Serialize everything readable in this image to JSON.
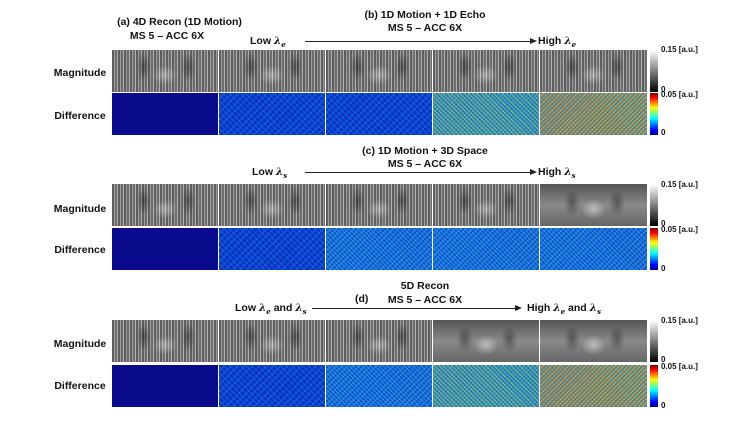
{
  "panel_a": {
    "title": "(a)  4D Recon (1D Motion)",
    "subtitle": "MS 5 – ACC 6X"
  },
  "panel_b": {
    "title": "(b)  1D Motion + 1D Echo",
    "subtitle": "MS 5 – ACC 6X",
    "low": "Low",
    "high": "High",
    "lambda": "λ",
    "sub": "e"
  },
  "panel_c": {
    "title": "(c) 1D Motion + 3D Space",
    "subtitle": "MS 5 – ACC 6X",
    "low": "Low",
    "high": "High",
    "lambda": "λ",
    "sub": "s"
  },
  "panel_d": {
    "title": "(d)",
    "title2": "5D Recon",
    "subtitle": "MS 5 – ACC 6X",
    "low": "Low",
    "high": "High",
    "lambda": "λ",
    "sub_e": "e",
    "sub_s": "s",
    "and": "and"
  },
  "rows": {
    "magnitude": "Magnitude",
    "difference": "Difference"
  },
  "colorbars": {
    "magnitude_max": "0.15 [a.u.]",
    "difference_max": "0.05 [a.u.]",
    "min": "0"
  },
  "colors": {
    "background": "#ffffff",
    "diff_low": "#00008f",
    "diff_high": "#800000"
  }
}
